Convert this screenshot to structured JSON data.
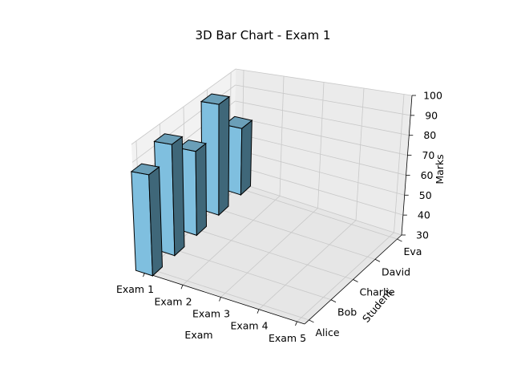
{
  "chart_data": {
    "type": "bar",
    "title": "3D Bar Chart - Exam 1",
    "xlabel": "Exam",
    "ylabel": "Student",
    "zlabel": "Marks",
    "x_categories": [
      "Exam 1",
      "Exam 2",
      "Exam 3",
      "Exam 4",
      "Exam 5"
    ],
    "y_categories": [
      "Alice",
      "Bob",
      "Charlie",
      "David",
      "Eva"
    ],
    "z_ticks": [
      30,
      40,
      50,
      60,
      70,
      80,
      90,
      100
    ],
    "zlim": [
      30,
      100
    ],
    "bars": [
      {
        "exam": "Exam 1",
        "student": "Alice",
        "value": 85
      },
      {
        "exam": "Exam 1",
        "student": "Bob",
        "value": 92
      },
      {
        "exam": "Exam 1",
        "student": "Charlie",
        "value": 78
      },
      {
        "exam": "Exam 1",
        "student": "David",
        "value": 95
      },
      {
        "exam": "Exam 1",
        "student": "Eva",
        "value": 70
      }
    ],
    "bar_color": "#7fbfdf",
    "grid": true
  }
}
